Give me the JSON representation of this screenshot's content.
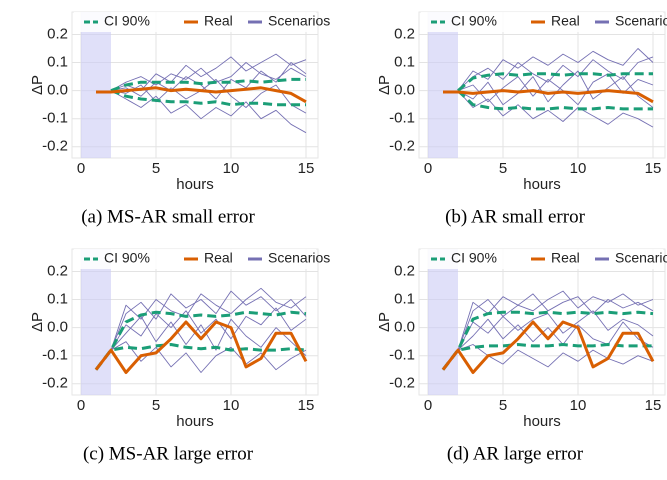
{
  "chart_data": [
    {
      "type": "line",
      "caption": "(a) MS-AR small error",
      "x_label": "hours",
      "y_label": "ΔP",
      "x": [
        1,
        2,
        3,
        4,
        5,
        6,
        7,
        8,
        9,
        10,
        11,
        12,
        13,
        14,
        15
      ],
      "xlim": [
        -0.6,
        15.8
      ],
      "xticks": [
        0,
        5,
        10,
        15
      ],
      "ylim": [
        -0.24,
        0.28
      ],
      "yticks": [
        -0.2,
        -0.1,
        {
          "value": 0,
          "label": "0.0"
        },
        0.1,
        0.2
      ],
      "grid": true,
      "shaded_x": [
        0,
        2
      ],
      "shade_color": "#ccccf5",
      "series": [
        {
          "name": "CI 90%",
          "color": "#1b9e77",
          "upper": [
            null,
            0,
            0.02,
            0.03,
            0.03,
            0.03,
            0.03,
            0.025,
            0.03,
            0.03,
            0.035,
            0.03,
            0.035,
            0.04,
            0.04
          ],
          "lower": [
            null,
            0,
            -0.02,
            -0.03,
            -0.035,
            -0.04,
            -0.04,
            -0.045,
            -0.04,
            -0.05,
            -0.045,
            -0.045,
            -0.05,
            -0.05,
            -0.05
          ]
        },
        {
          "name": "Real",
          "color": "#d95f02",
          "values": [
            -0.005,
            -0.005,
            0,
            0.005,
            0.01,
            0,
            0.005,
            0,
            -0.005,
            0,
            0.005,
            0.01,
            0,
            -0.01,
            -0.04
          ]
        },
        {
          "name": "Scenarios",
          "color": "#7570b3",
          "values": [
            [
              null,
              0,
              0.03,
              0.05,
              0.02,
              0.06,
              0.04,
              0.08,
              0.03,
              0.05,
              0.1,
              0.06,
              0.04,
              0.08,
              0.05
            ],
            [
              null,
              0,
              -0.03,
              -0.06,
              -0.02,
              -0.08,
              -0.05,
              -0.1,
              -0.06,
              -0.09,
              -0.04,
              -0.1,
              -0.07,
              -0.12,
              -0.15
            ],
            [
              null,
              0,
              0.01,
              -0.02,
              0.03,
              0,
              0.05,
              0.02,
              -0.03,
              0.04,
              0.01,
              0.07,
              0.03,
              0.1,
              0.06
            ],
            [
              null,
              0,
              -0.01,
              0.02,
              -0.04,
              0.01,
              -0.03,
              0,
              0.04,
              -0.02,
              -0.06,
              -0.01,
              0.02,
              -0.05,
              -0.08
            ],
            [
              null,
              0,
              0.02,
              0,
              0.06,
              0.03,
              0.09,
              0.05,
              0.08,
              0.12,
              0.07,
              0.1,
              0.13,
              0.09,
              0.11
            ]
          ]
        }
      ]
    },
    {
      "type": "line",
      "caption": "(b) AR small error",
      "x_label": "hours",
      "y_label": "ΔP",
      "x": [
        1,
        2,
        3,
        4,
        5,
        6,
        7,
        8,
        9,
        10,
        11,
        12,
        13,
        14,
        15
      ],
      "xlim": [
        -0.6,
        15.8
      ],
      "xticks": [
        0,
        5,
        10,
        15
      ],
      "ylim": [
        -0.24,
        0.28
      ],
      "yticks": [
        -0.2,
        -0.1,
        {
          "value": 0,
          "label": "0.0"
        },
        0.1,
        0.2
      ],
      "grid": true,
      "shaded_x": [
        0,
        2
      ],
      "shade_color": "#ccccf5",
      "series": [
        {
          "name": "CI 90%",
          "color": "#1b9e77",
          "upper": [
            null,
            0,
            0.045,
            0.055,
            0.06,
            0.055,
            0.06,
            0.06,
            0.055,
            0.06,
            0.06,
            0.055,
            0.06,
            0.06,
            0.06
          ],
          "lower": [
            null,
            0,
            -0.05,
            -0.06,
            -0.065,
            -0.06,
            -0.065,
            -0.065,
            -0.06,
            -0.065,
            -0.065,
            -0.06,
            -0.065,
            -0.065,
            -0.065
          ]
        },
        {
          "name": "Real",
          "color": "#d95f02",
          "values": [
            -0.005,
            -0.005,
            -0.01,
            -0.005,
            0,
            -0.005,
            0,
            -0.01,
            -0.005,
            -0.01,
            -0.005,
            0,
            -0.005,
            -0.01,
            -0.04
          ]
        },
        {
          "name": "Scenarios",
          "color": "#7570b3",
          "values": [
            [
              null,
              0,
              0.05,
              0.08,
              0.04,
              0.1,
              0.06,
              0.03,
              0.09,
              0.05,
              0.11,
              0.07,
              0.04,
              0.1,
              0.12
            ],
            [
              null,
              0,
              -0.06,
              -0.03,
              -0.09,
              -0.05,
              -0.1,
              -0.07,
              -0.11,
              -0.06,
              -0.09,
              -0.12,
              -0.08,
              -0.1,
              -0.13
            ],
            [
              null,
              0,
              0.02,
              -0.04,
              0.01,
              0.05,
              -0.02,
              0.04,
              0,
              -0.05,
              0.03,
              0.06,
              -0.01,
              0.04,
              0.02
            ],
            [
              null,
              0,
              -0.03,
              0.03,
              -0.05,
              -0.01,
              0.05,
              -0.04,
              0.02,
              0.07,
              -0.03,
              0.01,
              0.05,
              -0.02,
              -0.06
            ],
            [
              null,
              0,
              0.07,
              0.04,
              0.11,
              0.08,
              0.12,
              0.09,
              0.13,
              0.1,
              0.14,
              0.11,
              0.09,
              0.15,
              0.1
            ]
          ]
        }
      ]
    },
    {
      "type": "line",
      "caption": "(c) MS-AR large error",
      "x_label": "hours",
      "y_label": "ΔP",
      "x": [
        1,
        2,
        3,
        4,
        5,
        6,
        7,
        8,
        9,
        10,
        11,
        12,
        13,
        14,
        15
      ],
      "xlim": [
        -0.6,
        15.8
      ],
      "xticks": [
        0,
        5,
        10,
        15
      ],
      "ylim": [
        -0.24,
        0.28
      ],
      "yticks": [
        -0.2,
        -0.1,
        {
          "value": 0,
          "label": "0.0"
        },
        0.1,
        0.2
      ],
      "grid": true,
      "shaded_x": [
        0,
        2
      ],
      "shade_color": "#ccccf5",
      "series": [
        {
          "name": "CI 90%",
          "color": "#1b9e77",
          "upper": [
            -0.15,
            -0.08,
            0.02,
            0.045,
            0.055,
            0.05,
            0.04,
            0.045,
            0.04,
            0.045,
            0.055,
            0.05,
            0.045,
            0.055,
            0.05
          ],
          "lower": [
            -0.15,
            -0.08,
            -0.07,
            -0.075,
            -0.065,
            -0.06,
            -0.07,
            -0.075,
            -0.07,
            -0.08,
            -0.075,
            -0.08,
            -0.08,
            -0.075,
            -0.08
          ]
        },
        {
          "name": "Real",
          "color": "#d95f02",
          "values": [
            -0.15,
            -0.08,
            -0.16,
            -0.1,
            -0.09,
            -0.04,
            0.02,
            -0.04,
            0.02,
            0,
            -0.14,
            -0.11,
            -0.02,
            -0.02,
            -0.12
          ]
        },
        {
          "name": "Scenarios",
          "color": "#7570b3",
          "values": [
            [
              null,
              -0.08,
              0.05,
              0.09,
              0.03,
              0.12,
              0.07,
              0.1,
              0.05,
              0.13,
              0.08,
              0.11,
              0.06,
              0.1,
              0.04
            ],
            [
              null,
              -0.08,
              -0.05,
              -0.12,
              -0.07,
              -0.14,
              -0.09,
              -0.16,
              -0.1,
              -0.07,
              -0.13,
              -0.09,
              -0.15,
              -0.11,
              -0.08
            ],
            [
              null,
              -0.08,
              0.01,
              -0.03,
              0.05,
              0,
              0.06,
              -0.02,
              0.03,
              -0.04,
              0.04,
              0.01,
              0.07,
              -0.01,
              0.03
            ],
            [
              null,
              -0.08,
              -0.02,
              0.04,
              -0.05,
              0.02,
              -0.06,
              0.01,
              -0.08,
              0.03,
              -0.03,
              -0.07,
              0,
              -0.05,
              -0.1
            ],
            [
              null,
              -0.08,
              0.08,
              0.03,
              0.1,
              0.06,
              0.04,
              0.12,
              0.08,
              0.05,
              0.1,
              0.14,
              0.09,
              0.07,
              0.11
            ]
          ]
        }
      ]
    },
    {
      "type": "line",
      "caption": "(d) AR large error",
      "x_label": "hours",
      "y_label": "ΔP",
      "x": [
        1,
        2,
        3,
        4,
        5,
        6,
        7,
        8,
        9,
        10,
        11,
        12,
        13,
        14,
        15
      ],
      "xlim": [
        -0.6,
        15.8
      ],
      "xticks": [
        0,
        5,
        10,
        15
      ],
      "ylim": [
        -0.24,
        0.28
      ],
      "yticks": [
        -0.2,
        -0.1,
        {
          "value": 0,
          "label": "0.0"
        },
        0.1,
        0.2
      ],
      "grid": true,
      "shaded_x": [
        0,
        2
      ],
      "shade_color": "#ccccf5",
      "series": [
        {
          "name": "CI 90%",
          "color": "#1b9e77",
          "upper": [
            -0.15,
            -0.08,
            0.03,
            0.05,
            0.055,
            0.055,
            0.05,
            0.055,
            0.05,
            0.055,
            0.05,
            0.055,
            0.05,
            0.055,
            0.05
          ],
          "lower": [
            -0.15,
            -0.08,
            -0.07,
            -0.065,
            -0.065,
            -0.06,
            -0.065,
            -0.065,
            -0.06,
            -0.065,
            -0.065,
            -0.06,
            -0.065,
            -0.065,
            -0.065
          ]
        },
        {
          "name": "Real",
          "color": "#d95f02",
          "values": [
            -0.15,
            -0.08,
            -0.16,
            -0.1,
            -0.09,
            -0.04,
            0.02,
            -0.04,
            0.02,
            0,
            -0.14,
            -0.11,
            -0.02,
            -0.02,
            -0.12
          ]
        },
        {
          "name": "Scenarios",
          "color": "#7570b3",
          "values": [
            [
              null,
              -0.08,
              0.06,
              0.1,
              0.04,
              0.08,
              0.12,
              0.06,
              0.09,
              0.11,
              0.05,
              0.1,
              0.07,
              0.09,
              0.06
            ],
            [
              null,
              -0.08,
              -0.06,
              -0.1,
              -0.13,
              -0.08,
              -0.11,
              -0.14,
              -0.09,
              -0.12,
              -0.08,
              -0.11,
              -0.13,
              -0.1,
              -0.12
            ],
            [
              null,
              -0.08,
              0.02,
              -0.02,
              0.04,
              -0.01,
              0.03,
              0.05,
              -0.02,
              0.02,
              0.06,
              -0.01,
              0.03,
              0.01,
              -0.03
            ],
            [
              null,
              -0.08,
              -0.03,
              0.03,
              -0.04,
              0.01,
              -0.05,
              0,
              -0.06,
              0.01,
              -0.04,
              -0.06,
              0.02,
              -0.04,
              -0.07
            ],
            [
              null,
              -0.08,
              0.09,
              0.05,
              0.11,
              0.08,
              0.06,
              0.1,
              0.13,
              0.07,
              0.11,
              0.09,
              0.12,
              0.08,
              0.1
            ]
          ]
        }
      ]
    }
  ]
}
